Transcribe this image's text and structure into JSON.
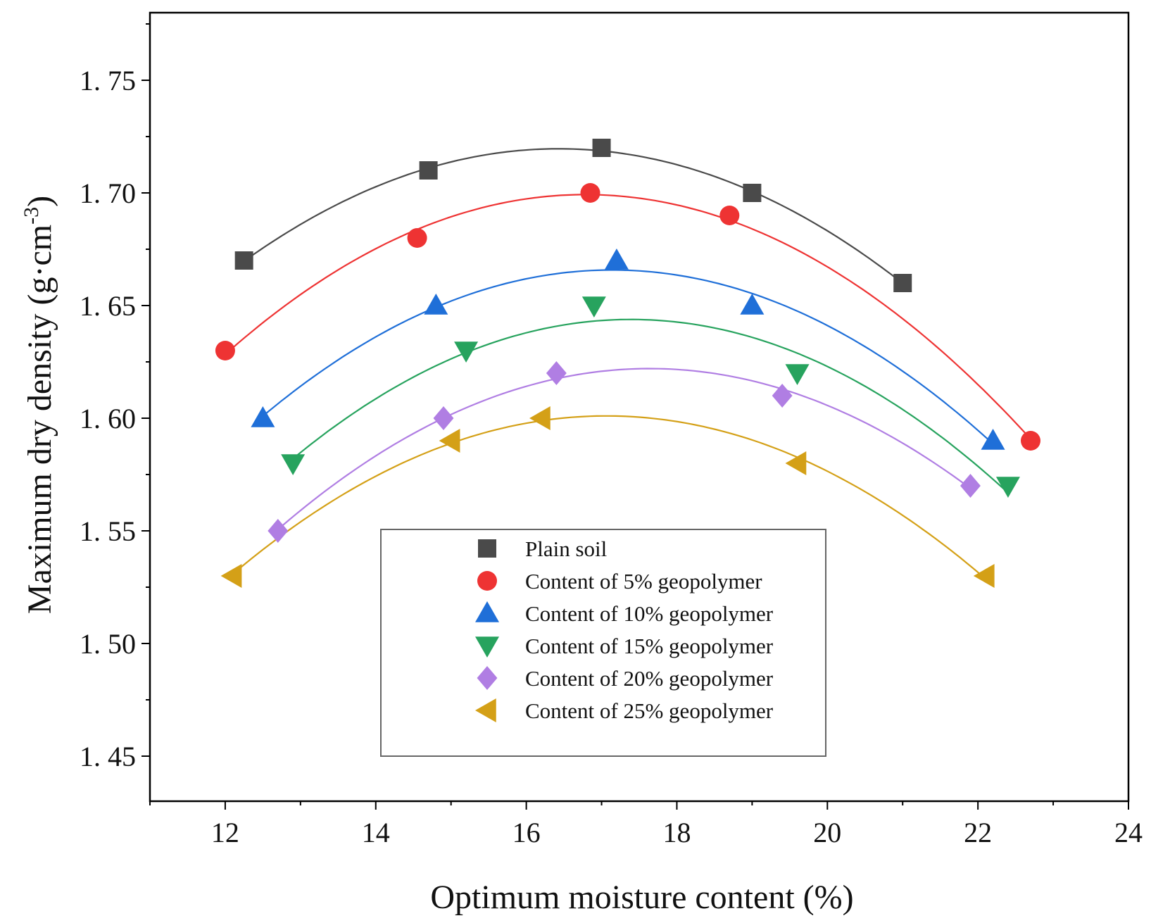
{
  "chart_data": {
    "type": "scatter",
    "title": "",
    "xlabel": "Optimum moisture content (%)",
    "ylabel_main": "Maximum dry density (g·cm",
    "ylabel_exp": "-3",
    "ylabel_close": ")",
    "xlim": [
      11,
      24
    ],
    "ylim": [
      1.43,
      1.78
    ],
    "xticks": [
      12,
      14,
      16,
      18,
      20,
      22,
      24
    ],
    "xtick_labels": [
      "12",
      "14",
      "16",
      "18",
      "20",
      "22",
      "24"
    ],
    "yticks": [
      1.45,
      1.5,
      1.55,
      1.6,
      1.65,
      1.7,
      1.75
    ],
    "ytick_labels": [
      "1. 45",
      "1. 50",
      "1. 55",
      "1. 60",
      "1. 65",
      "1. 70",
      "1. 75"
    ],
    "legend_position": "bottom-center",
    "series": [
      {
        "name": "Plain soil",
        "marker": "square",
        "color": "#4a4a4a",
        "x": [
          12.25,
          14.7,
          17.0,
          19.0,
          21.0
        ],
        "y": [
          1.67,
          1.71,
          1.72,
          1.7,
          1.66
        ]
      },
      {
        "name": "Content of 5% geopolymer",
        "marker": "circle",
        "color": "#ee3333",
        "x": [
          12.0,
          14.55,
          16.85,
          18.7,
          22.7
        ],
        "y": [
          1.63,
          1.68,
          1.7,
          1.69,
          1.59
        ]
      },
      {
        "name": "Content of 10% geopolymer",
        "marker": "triangle-up",
        "color": "#1f6fd8",
        "x": [
          12.5,
          14.8,
          17.2,
          19.0,
          22.2
        ],
        "y": [
          1.6,
          1.65,
          1.67,
          1.65,
          1.59
        ]
      },
      {
        "name": "Content of 15% geopolymer",
        "marker": "triangle-down",
        "color": "#27a35e",
        "x": [
          12.9,
          15.2,
          16.9,
          19.6,
          22.4
        ],
        "y": [
          1.58,
          1.63,
          1.65,
          1.62,
          1.57
        ]
      },
      {
        "name": "Content of 20% geopolymer",
        "marker": "diamond",
        "color": "#b07ee3",
        "x": [
          12.7,
          14.9,
          16.4,
          19.4,
          21.9
        ],
        "y": [
          1.55,
          1.6,
          1.62,
          1.61,
          1.57
        ]
      },
      {
        "name": "Content of 25% geopolymer",
        "marker": "triangle-left",
        "color": "#d4a017",
        "x": [
          12.1,
          15.0,
          16.2,
          19.6,
          22.1
        ],
        "y": [
          1.53,
          1.59,
          1.6,
          1.58,
          1.53
        ]
      }
    ]
  }
}
